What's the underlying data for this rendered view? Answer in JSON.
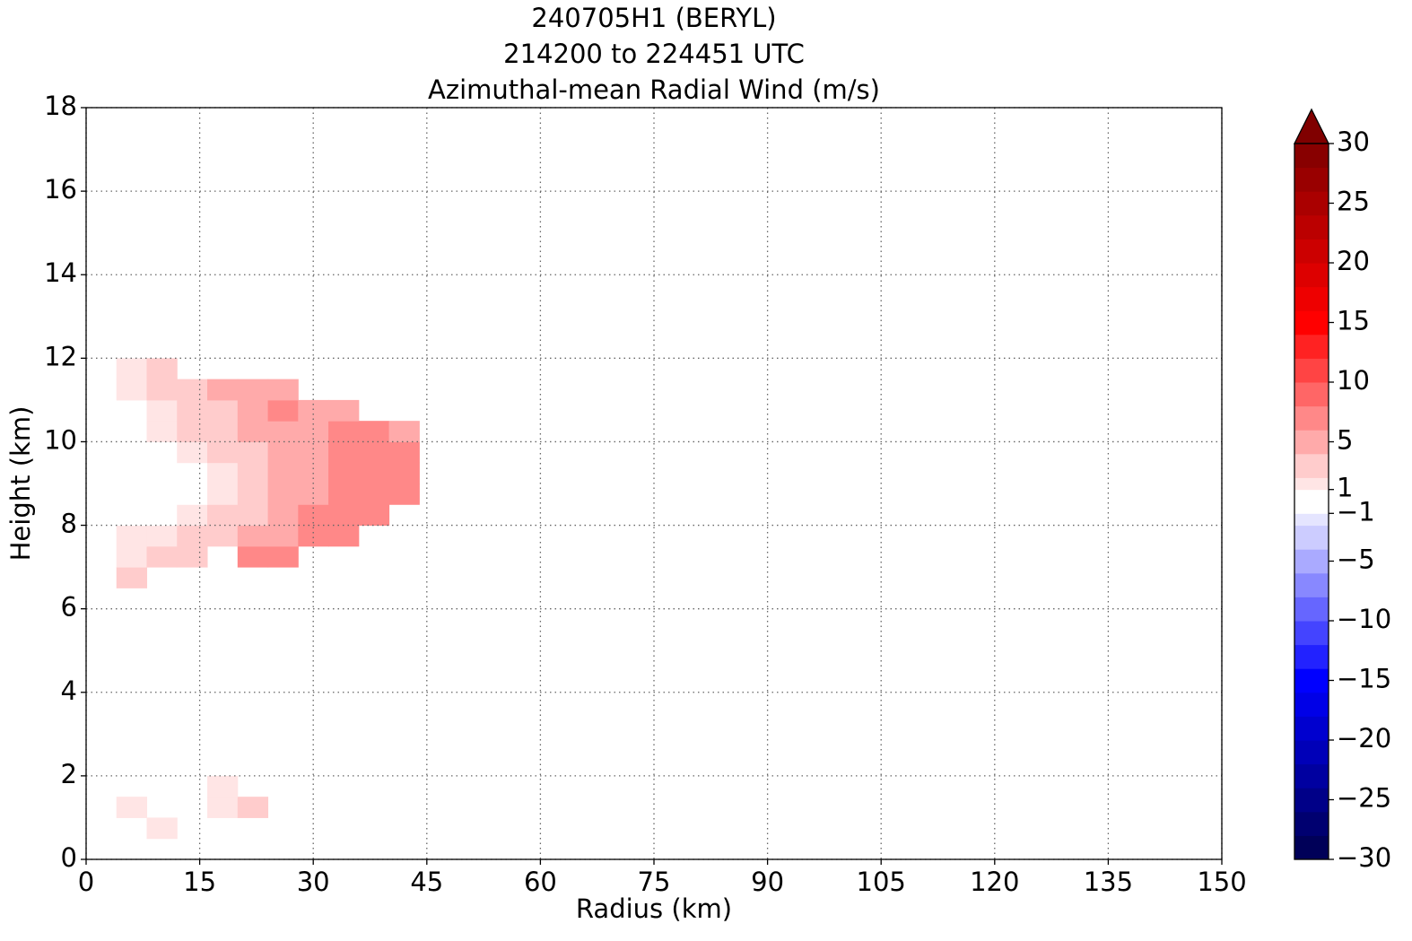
{
  "chart_data": {
    "type": "contourf",
    "title": [
      "240705H1 (BERYL)",
      "214200 to 224451 UTC",
      "Azimuthal-mean Radial Wind (m/s)"
    ],
    "x_label": "Radius (km)",
    "y_label": "Height (km)",
    "xlim": [
      0,
      150
    ],
    "xticks": [
      0,
      15,
      30,
      45,
      60,
      75,
      90,
      105,
      120,
      135,
      150
    ],
    "ylim": [
      0,
      18
    ],
    "yticks": [
      0,
      2,
      4,
      6,
      8,
      10,
      12,
      14,
      16,
      18
    ],
    "grid": true,
    "colormap": "seismic",
    "extend": "max",
    "x": [
      6,
      10,
      14,
      18,
      22,
      26,
      30,
      34,
      38,
      42
    ],
    "y": [
      0.75,
      1.25,
      1.75,
      6.75,
      7.25,
      7.75,
      8.25,
      8.75,
      9.25,
      9.75,
      10.25,
      10.75,
      11.25,
      11.75
    ],
    "z": [
      [
        null,
        1.5,
        null,
        null,
        null,
        null,
        null,
        null,
        null,
        null
      ],
      [
        1.5,
        null,
        null,
        1.5,
        2,
        null,
        null,
        null,
        null,
        null
      ],
      [
        null,
        null,
        null,
        1.5,
        null,
        null,
        null,
        null,
        null,
        null
      ],
      [
        3,
        null,
        null,
        null,
        null,
        null,
        null,
        null,
        null,
        null
      ],
      [
        1.5,
        2,
        3,
        null,
        7,
        6,
        null,
        null,
        null,
        null
      ],
      [
        1.5,
        1.5,
        2,
        3,
        4,
        5,
        6,
        7,
        null,
        null
      ],
      [
        -0.5,
        0,
        1.5,
        2,
        3,
        4.5,
        6,
        6,
        7,
        null
      ],
      [
        -0.5,
        -0.5,
        -0.5,
        1.5,
        3,
        4,
        5,
        6,
        6,
        6
      ],
      [
        -0.5,
        -0.5,
        0,
        1.5,
        2.5,
        4,
        5,
        6,
        6,
        6
      ],
      [
        -0.5,
        0,
        1.5,
        2.5,
        3,
        4,
        5,
        6,
        6,
        6
      ],
      [
        0,
        1.5,
        2,
        3,
        4,
        5,
        5,
        6,
        6,
        5
      ],
      [
        0.5,
        1.5,
        3,
        3,
        5,
        6,
        5,
        5,
        null,
        null
      ],
      [
        1.5,
        3,
        3,
        4,
        5,
        5,
        null,
        null,
        null,
        null
      ],
      [
        1.5,
        3,
        null,
        null,
        null,
        null,
        null,
        null,
        null,
        null
      ]
    ],
    "levels": [
      -30,
      -28,
      -26,
      -24,
      -22,
      -20,
      -18,
      -16,
      -14,
      -12,
      -10,
      -8,
      -6,
      -4,
      -2,
      -1,
      1,
      2,
      4,
      6,
      8,
      10,
      12,
      14,
      16,
      18,
      20,
      22,
      24,
      26,
      28,
      30
    ],
    "colorbar_ticks": [
      {
        "value": -30,
        "label": "−30"
      },
      {
        "value": -25,
        "label": "−25"
      },
      {
        "value": -20,
        "label": "−20"
      },
      {
        "value": -15,
        "label": "−15"
      },
      {
        "value": -10,
        "label": "−10"
      },
      {
        "value": -5,
        "label": "−5"
      },
      {
        "value": -1,
        "label": "−1"
      },
      1,
      5,
      10,
      15,
      20,
      25,
      30
    ]
  }
}
